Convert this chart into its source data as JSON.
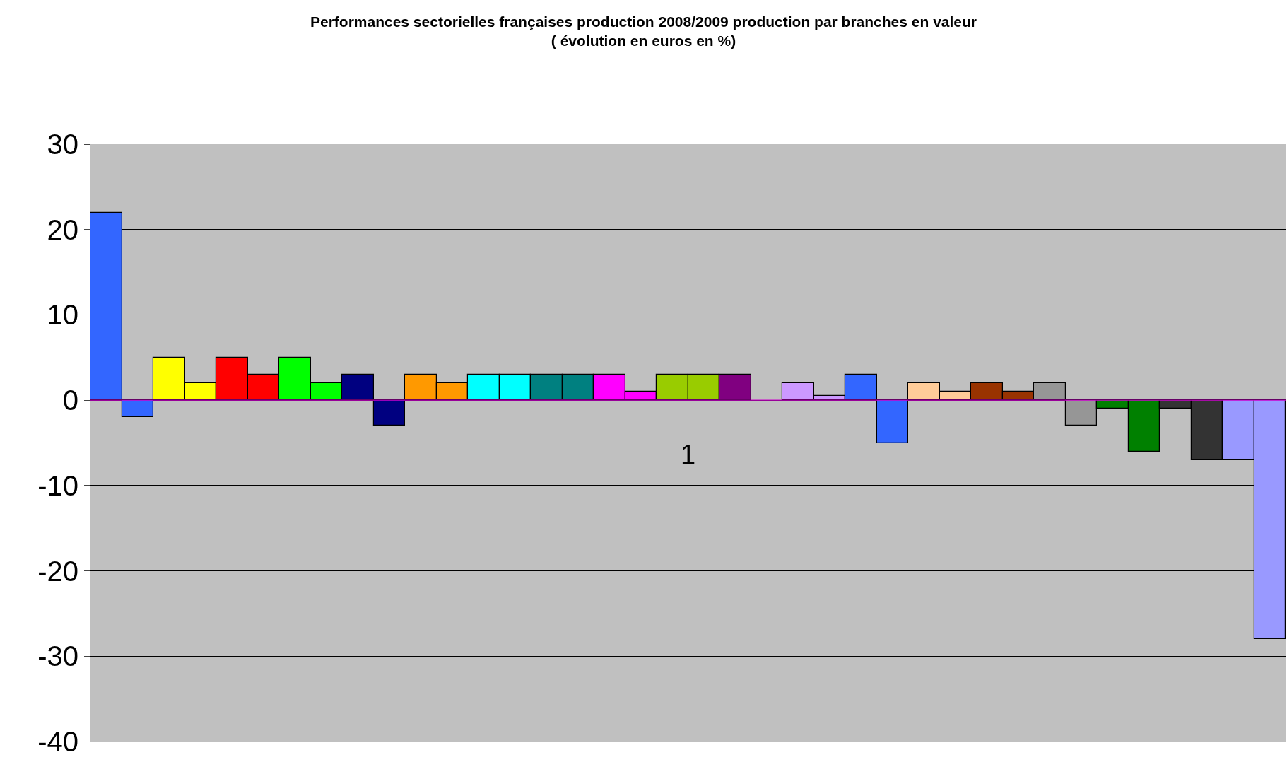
{
  "chart_data": {
    "type": "bar",
    "title": "Performances sectorielles françaises production 2008/2009 production par branches en valeur",
    "subtitle": "( évolution en euros en %)",
    "categories": [
      null,
      null,
      null,
      null,
      null,
      null,
      null,
      null,
      null,
      null,
      null,
      null,
      null,
      null,
      null,
      null,
      null,
      null,
      null,
      null,
      null,
      null,
      null,
      null,
      null,
      null,
      null,
      null,
      null,
      null,
      null,
      null,
      null,
      null,
      null,
      null,
      null,
      null
    ],
    "values": [
      22,
      -2,
      5,
      2,
      5,
      3,
      5,
      2,
      3,
      -3,
      3,
      2,
      3,
      3,
      3,
      3,
      3,
      1,
      3,
      3,
      3,
      0,
      2,
      0.5,
      3,
      -5,
      2,
      1,
      2,
      1,
      2,
      -3,
      -1,
      -6,
      -1,
      -7,
      -7,
      -28
    ],
    "colors": [
      "#3366ff",
      "#3366ff",
      "#ffff00",
      "#ffff00",
      "#ff0000",
      "#ff0000",
      "#00ff00",
      "#00ff00",
      "#000080",
      "#000080",
      "#ff9900",
      "#ff9900",
      "#00ffff",
      "#00ffff",
      "#008080",
      "#008080",
      "#ff00ff",
      "#ff00ff",
      "#99cc00",
      "#99cc00",
      "#800080",
      null,
      "#cc99ff",
      "#cc99ff",
      "#3366ff",
      "#3366ff",
      "#ffcc99",
      "#ffcc99",
      "#993300",
      "#993300",
      "#969696",
      "#969696",
      "#008000",
      "#008000",
      "#333333",
      "#333333",
      "#9999ff",
      "#9999ff"
    ],
    "ylim": [
      -40,
      30
    ],
    "yticks": [
      -40,
      -30,
      -20,
      -10,
      0,
      10,
      20,
      30
    ],
    "grid": "y",
    "ref_lines": [
      {
        "axis": "y",
        "value": 0,
        "color": "#cc00cc"
      }
    ],
    "annotations": [
      "1"
    ]
  }
}
